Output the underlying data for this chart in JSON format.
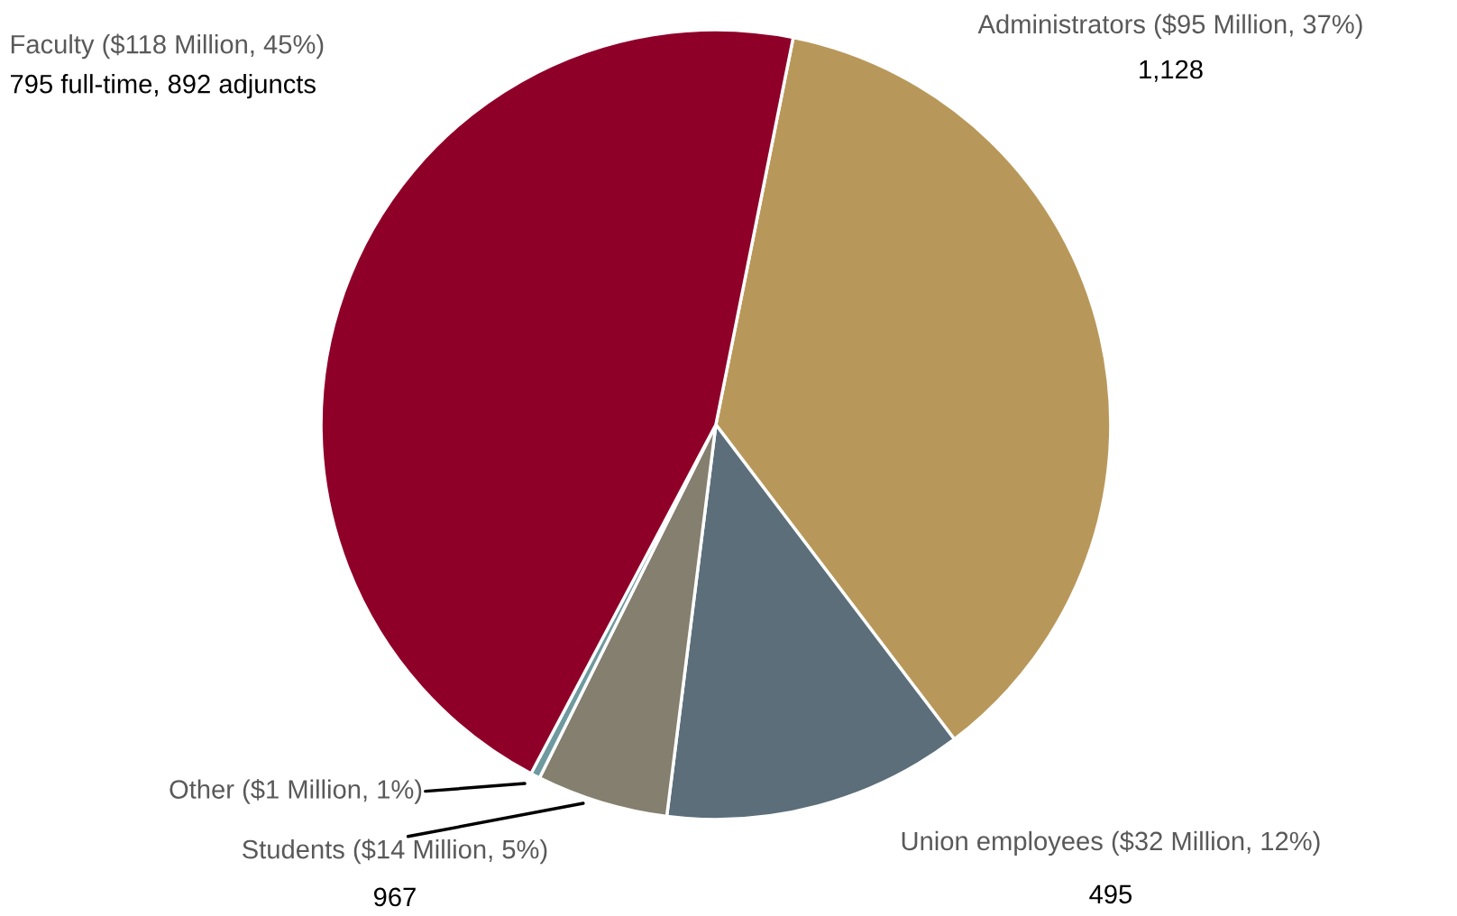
{
  "chart_data": {
    "type": "pie",
    "categories": [
      "Administrators ($95 Million, 37%)",
      "Union employees ($32 Million, 12%)",
      "Students ($14 Million, 5%)",
      "Other ($1 Million, 1%)",
      "Faculty ($118 Million, 45%)"
    ],
    "values": [
      95,
      32,
      14,
      1,
      118
    ],
    "colors": [
      "#b8985a",
      "#5b6e7a",
      "#847f6e",
      "#6e9aa0",
      "#8f0029"
    ],
    "annotations": [
      "1,128",
      "495",
      "967",
      null,
      "795 full-time, 892 adjuncts"
    ]
  }
}
